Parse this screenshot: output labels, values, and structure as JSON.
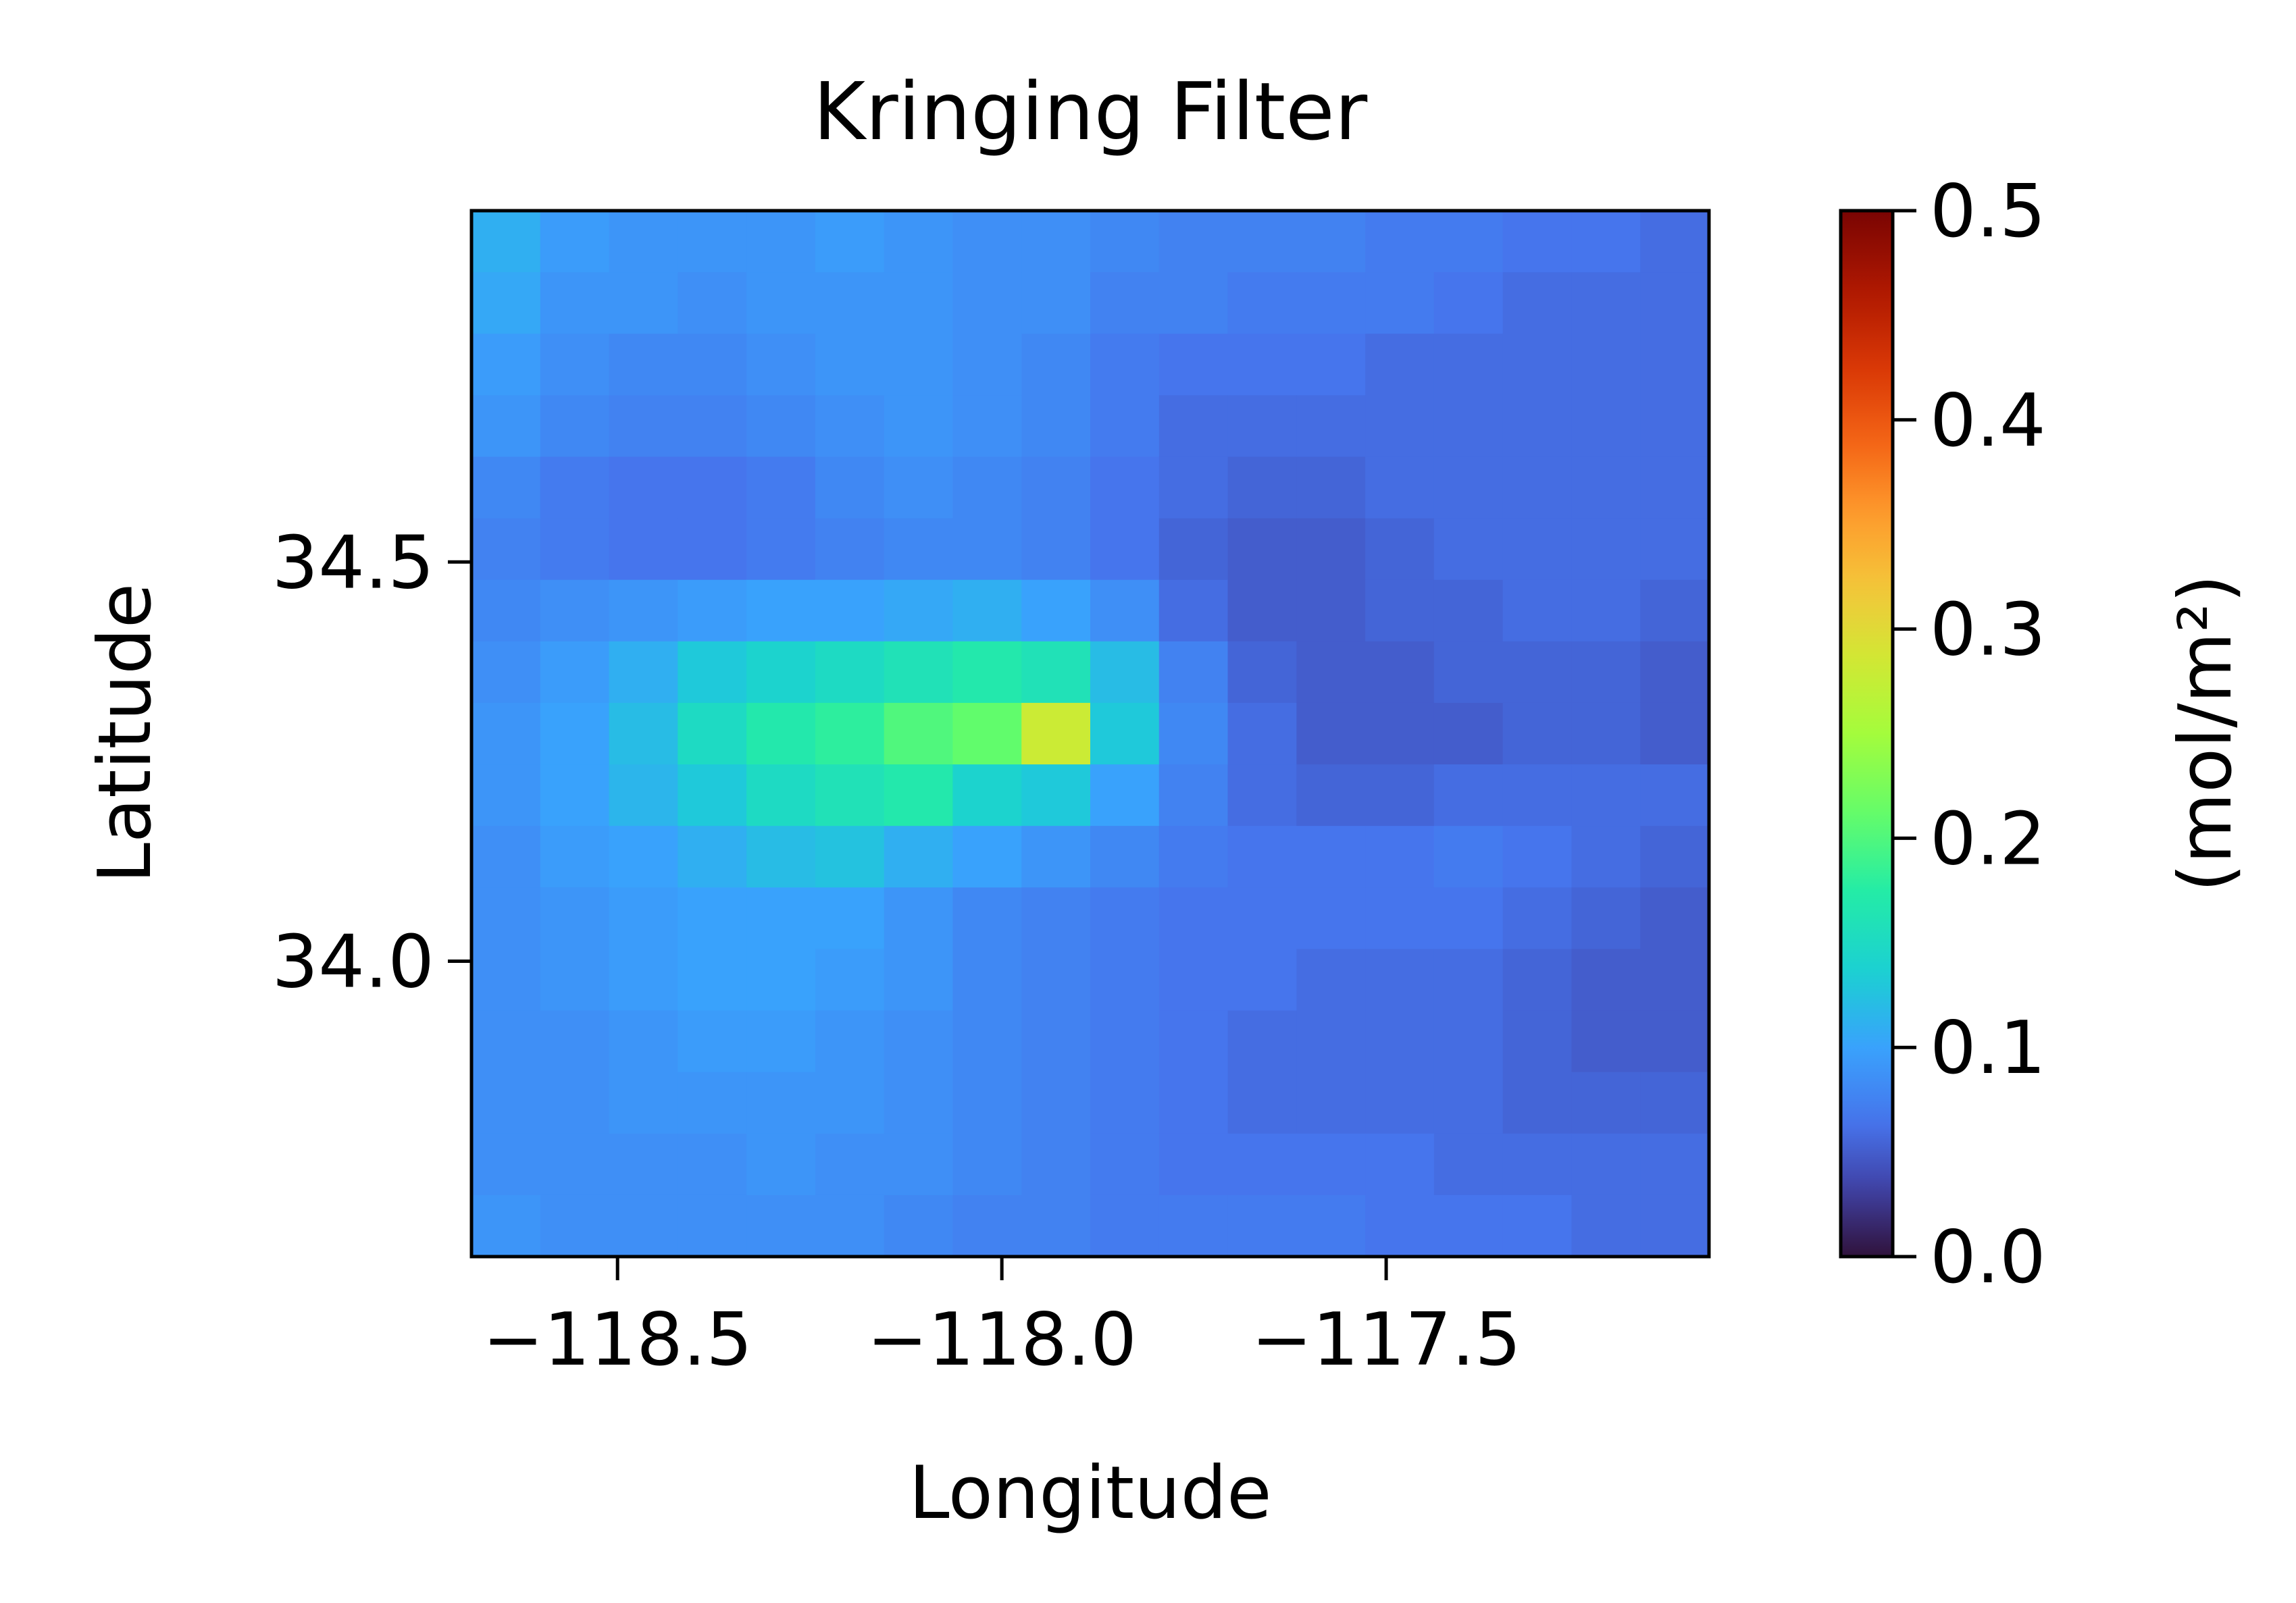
{
  "chart_data": {
    "type": "heatmap",
    "title": "Kringing Filter",
    "xlabel": "Longitude",
    "ylabel": "Latitude",
    "xlim": [
      -118.69,
      -117.08
    ],
    "ylim": [
      33.63,
      34.94
    ],
    "xticks": [
      -118.5,
      -118.0,
      -117.5
    ],
    "xtick_labels": [
      "−118.5",
      "−118.0",
      "−117.5"
    ],
    "yticks": [
      34.0,
      34.5
    ],
    "ytick_labels": [
      "34.0",
      "34.5"
    ],
    "colormap": "turbo",
    "colorbar": {
      "label": "(mol/m²)",
      "vmin": 0.0,
      "vmax": 0.5,
      "ticks": [
        0.0,
        0.1,
        0.2,
        0.3,
        0.4,
        0.5
      ],
      "tick_labels": [
        "0.0",
        "0.1",
        "0.2",
        "0.3",
        "0.4",
        "0.5"
      ]
    },
    "grid": false,
    "grid_shape": [
      17,
      18
    ],
    "row_order": "north-to-south",
    "values": [
      [
        0.11,
        0.095,
        0.09,
        0.09,
        0.09,
        0.095,
        0.09,
        0.085,
        0.085,
        0.08,
        0.075,
        0.075,
        0.075,
        0.07,
        0.07,
        0.065,
        0.065,
        0.06
      ],
      [
        0.105,
        0.09,
        0.09,
        0.085,
        0.09,
        0.09,
        0.09,
        0.085,
        0.085,
        0.075,
        0.075,
        0.07,
        0.07,
        0.07,
        0.065,
        0.06,
        0.06,
        0.06
      ],
      [
        0.095,
        0.085,
        0.08,
        0.08,
        0.085,
        0.09,
        0.09,
        0.085,
        0.08,
        0.07,
        0.065,
        0.065,
        0.065,
        0.06,
        0.06,
        0.06,
        0.06,
        0.06
      ],
      [
        0.09,
        0.08,
        0.075,
        0.075,
        0.08,
        0.085,
        0.09,
        0.085,
        0.08,
        0.07,
        0.06,
        0.06,
        0.06,
        0.06,
        0.06,
        0.06,
        0.06,
        0.06
      ],
      [
        0.08,
        0.07,
        0.065,
        0.065,
        0.07,
        0.08,
        0.085,
        0.08,
        0.075,
        0.065,
        0.06,
        0.055,
        0.055,
        0.06,
        0.06,
        0.06,
        0.06,
        0.06
      ],
      [
        0.075,
        0.07,
        0.065,
        0.065,
        0.07,
        0.075,
        0.08,
        0.08,
        0.075,
        0.065,
        0.055,
        0.05,
        0.05,
        0.055,
        0.06,
        0.06,
        0.06,
        0.06
      ],
      [
        0.08,
        0.085,
        0.09,
        0.095,
        0.1,
        0.1,
        0.105,
        0.11,
        0.1,
        0.085,
        0.06,
        0.05,
        0.05,
        0.055,
        0.055,
        0.06,
        0.06,
        0.055
      ],
      [
        0.085,
        0.095,
        0.11,
        0.13,
        0.14,
        0.15,
        0.16,
        0.17,
        0.16,
        0.12,
        0.075,
        0.055,
        0.05,
        0.05,
        0.055,
        0.055,
        0.055,
        0.05
      ],
      [
        0.09,
        0.1,
        0.12,
        0.15,
        0.17,
        0.18,
        0.2,
        0.21,
        0.28,
        0.13,
        0.08,
        0.06,
        0.05,
        0.05,
        0.05,
        0.055,
        0.055,
        0.05
      ],
      [
        0.09,
        0.1,
        0.115,
        0.13,
        0.15,
        0.16,
        0.17,
        0.14,
        0.13,
        0.1,
        0.075,
        0.06,
        0.055,
        0.055,
        0.06,
        0.06,
        0.06,
        0.06
      ],
      [
        0.085,
        0.095,
        0.1,
        0.11,
        0.12,
        0.125,
        0.11,
        0.1,
        0.09,
        0.08,
        0.07,
        0.065,
        0.065,
        0.065,
        0.07,
        0.065,
        0.06,
        0.055
      ],
      [
        0.085,
        0.09,
        0.095,
        0.1,
        0.1,
        0.1,
        0.09,
        0.08,
        0.075,
        0.07,
        0.065,
        0.065,
        0.065,
        0.065,
        0.065,
        0.06,
        0.055,
        0.05
      ],
      [
        0.085,
        0.09,
        0.095,
        0.1,
        0.1,
        0.095,
        0.09,
        0.08,
        0.075,
        0.07,
        0.065,
        0.065,
        0.06,
        0.06,
        0.06,
        0.055,
        0.05,
        0.05
      ],
      [
        0.085,
        0.085,
        0.09,
        0.095,
        0.095,
        0.09,
        0.085,
        0.08,
        0.075,
        0.07,
        0.065,
        0.06,
        0.06,
        0.06,
        0.06,
        0.055,
        0.05,
        0.05
      ],
      [
        0.085,
        0.085,
        0.09,
        0.09,
        0.09,
        0.09,
        0.085,
        0.08,
        0.075,
        0.07,
        0.065,
        0.06,
        0.06,
        0.06,
        0.06,
        0.055,
        0.055,
        0.055
      ],
      [
        0.085,
        0.085,
        0.085,
        0.085,
        0.09,
        0.085,
        0.085,
        0.08,
        0.075,
        0.07,
        0.065,
        0.065,
        0.065,
        0.065,
        0.06,
        0.06,
        0.06,
        0.06
      ],
      [
        0.09,
        0.085,
        0.085,
        0.085,
        0.085,
        0.085,
        0.08,
        0.075,
        0.075,
        0.07,
        0.07,
        0.07,
        0.07,
        0.065,
        0.065,
        0.065,
        0.06,
        0.06
      ]
    ]
  }
}
